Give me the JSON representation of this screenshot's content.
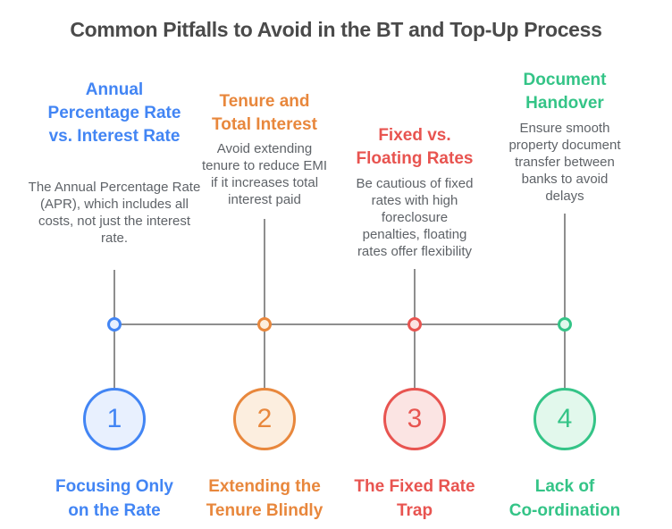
{
  "title": "Common Pitfalls to Avoid in the BT and Top-Up Process",
  "colors": {
    "line_gray": "#8e8e8e",
    "title_gray": "#4a4a4a",
    "body_gray": "#5f6368"
  },
  "columns": [
    {
      "number": "1",
      "accent": "#4285f4",
      "fill": "#e8f0fe",
      "heading": "Annual\nPercentage Rate\nvs. Interest Rate",
      "description": "The Annual Percentage Rate\n(APR), which includes all\ncosts, not just the interest\nrate.",
      "label": "Focusing Only\non the Rate"
    },
    {
      "number": "2",
      "accent": "#e8873c",
      "fill": "#fceedf",
      "heading": "Tenure and\nTotal Interest",
      "description": "Avoid extending\ntenure to reduce EMI\nif it increases total\ninterest paid",
      "label": "Extending the\nTenure Blindly"
    },
    {
      "number": "3",
      "accent": "#e85450",
      "fill": "#fbe4e3",
      "heading": "Fixed vs.\nFloating Rates",
      "description": "Be cautious of fixed\nrates with high\nforeclosure\npenalties, floating\nrates offer flexibility",
      "label": "The Fixed Rate\nTrap"
    },
    {
      "number": "4",
      "accent": "#34c487",
      "fill": "#e2f8ec",
      "heading": "Document\nHandover",
      "description": "Ensure smooth\nproperty document\ntransfer between\nbanks to avoid\ndelays",
      "label": "Lack of\nCo-ordination"
    }
  ]
}
